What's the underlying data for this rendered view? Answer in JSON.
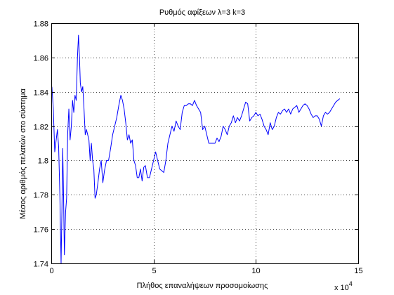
{
  "chart_data": {
    "type": "line",
    "title": "Ρυθμός αφίξεων λ=3 k=3",
    "xlabel": "Πλήθος επαναλήψεων προσομοίωσης",
    "ylabel": "Μέσος αριθμός πελατών στο σύστημα",
    "x_multiplier": "x 10",
    "x_multiplier_exponent": "4",
    "xlim": [
      0,
      15
    ],
    "ylim": [
      1.74,
      1.88
    ],
    "xticks": [
      0,
      5,
      10,
      15
    ],
    "xtick_labels": [
      "0",
      "5",
      "10",
      "15"
    ],
    "yticks": [
      1.74,
      1.76,
      1.78,
      1.8,
      1.82,
      1.84,
      1.86,
      1.88
    ],
    "ytick_labels": [
      "1.74",
      "1.76",
      "1.78",
      "1.8",
      "1.82",
      "1.84",
      "1.86",
      "1.88"
    ],
    "grid": true,
    "grid_style": "dotted",
    "series": [
      {
        "color": "#0000ff",
        "points": [
          [
            0.03,
            1.843
          ],
          [
            0.1,
            1.83
          ],
          [
            0.17,
            1.805
          ],
          [
            0.24,
            1.812
          ],
          [
            0.3,
            1.818
          ],
          [
            0.36,
            1.808
          ],
          [
            0.42,
            1.78
          ],
          [
            0.48,
            1.74
          ],
          [
            0.52,
            1.77
          ],
          [
            0.56,
            1.807
          ],
          [
            0.6,
            1.78
          ],
          [
            0.64,
            1.745
          ],
          [
            0.7,
            1.77
          ],
          [
            0.75,
            1.778
          ],
          [
            0.8,
            1.815
          ],
          [
            0.86,
            1.83
          ],
          [
            0.92,
            1.812
          ],
          [
            0.98,
            1.82
          ],
          [
            1.04,
            1.835
          ],
          [
            1.1,
            1.828
          ],
          [
            1.16,
            1.838
          ],
          [
            1.22,
            1.835
          ],
          [
            1.28,
            1.86
          ],
          [
            1.33,
            1.873
          ],
          [
            1.38,
            1.86
          ],
          [
            1.42,
            1.845
          ],
          [
            1.48,
            1.84
          ],
          [
            1.54,
            1.843
          ],
          [
            1.6,
            1.83
          ],
          [
            1.66,
            1.815
          ],
          [
            1.72,
            1.818
          ],
          [
            1.78,
            1.815
          ],
          [
            1.84,
            1.812
          ],
          [
            1.9,
            1.8
          ],
          [
            1.96,
            1.81
          ],
          [
            2.02,
            1.8
          ],
          [
            2.08,
            1.795
          ],
          [
            2.14,
            1.778
          ],
          [
            2.2,
            1.78
          ],
          [
            2.28,
            1.787
          ],
          [
            2.36,
            1.795
          ],
          [
            2.44,
            1.8
          ],
          [
            2.52,
            1.787
          ],
          [
            2.6,
            1.794
          ],
          [
            2.7,
            1.8
          ],
          [
            2.8,
            1.8
          ],
          [
            2.9,
            1.807
          ],
          [
            3.0,
            1.815
          ],
          [
            3.1,
            1.82
          ],
          [
            3.2,
            1.825
          ],
          [
            3.3,
            1.832
          ],
          [
            3.4,
            1.838
          ],
          [
            3.48,
            1.835
          ],
          [
            3.56,
            1.83
          ],
          [
            3.64,
            1.822
          ],
          [
            3.72,
            1.812
          ],
          [
            3.8,
            1.815
          ],
          [
            3.88,
            1.81
          ],
          [
            3.96,
            1.812
          ],
          [
            4.04,
            1.8
          ],
          [
            4.12,
            1.797
          ],
          [
            4.2,
            1.79
          ],
          [
            4.28,
            1.79
          ],
          [
            4.36,
            1.795
          ],
          [
            4.44,
            1.788
          ],
          [
            4.52,
            1.796
          ],
          [
            4.6,
            1.797
          ],
          [
            4.7,
            1.79
          ],
          [
            4.8,
            1.79
          ],
          [
            4.9,
            1.795
          ],
          [
            5.0,
            1.8
          ],
          [
            5.1,
            1.805
          ],
          [
            5.2,
            1.8
          ],
          [
            5.3,
            1.795
          ],
          [
            5.4,
            1.794
          ],
          [
            5.5,
            1.793
          ],
          [
            5.6,
            1.8
          ],
          [
            5.7,
            1.81
          ],
          [
            5.8,
            1.815
          ],
          [
            5.9,
            1.82
          ],
          [
            6.0,
            1.817
          ],
          [
            6.1,
            1.823
          ],
          [
            6.2,
            1.82
          ],
          [
            6.3,
            1.818
          ],
          [
            6.4,
            1.828
          ],
          [
            6.5,
            1.832
          ],
          [
            6.6,
            1.832
          ],
          [
            6.7,
            1.833
          ],
          [
            6.8,
            1.833
          ],
          [
            6.9,
            1.832
          ],
          [
            7.0,
            1.835
          ],
          [
            7.1,
            1.832
          ],
          [
            7.2,
            1.83
          ],
          [
            7.3,
            1.828
          ],
          [
            7.4,
            1.818
          ],
          [
            7.5,
            1.82
          ],
          [
            7.6,
            1.815
          ],
          [
            7.7,
            1.81
          ],
          [
            7.8,
            1.81
          ],
          [
            7.9,
            1.81
          ],
          [
            8.0,
            1.81
          ],
          [
            8.1,
            1.813
          ],
          [
            8.2,
            1.811
          ],
          [
            8.3,
            1.814
          ],
          [
            8.4,
            1.82
          ],
          [
            8.5,
            1.818
          ],
          [
            8.6,
            1.815
          ],
          [
            8.7,
            1.82
          ],
          [
            8.8,
            1.822
          ],
          [
            8.9,
            1.826
          ],
          [
            9.0,
            1.822
          ],
          [
            9.1,
            1.825
          ],
          [
            9.2,
            1.823
          ],
          [
            9.3,
            1.826
          ],
          [
            9.4,
            1.83
          ],
          [
            9.5,
            1.834
          ],
          [
            9.6,
            1.833
          ],
          [
            9.7,
            1.823
          ],
          [
            9.8,
            1.825
          ],
          [
            9.9,
            1.826
          ],
          [
            10.0,
            1.828
          ],
          [
            10.1,
            1.826
          ],
          [
            10.2,
            1.827
          ],
          [
            10.3,
            1.824
          ],
          [
            10.4,
            1.82
          ],
          [
            10.5,
            1.818
          ],
          [
            10.6,
            1.815
          ],
          [
            10.7,
            1.822
          ],
          [
            10.8,
            1.818
          ],
          [
            10.9,
            1.82
          ],
          [
            11.0,
            1.825
          ],
          [
            11.1,
            1.828
          ],
          [
            11.2,
            1.827
          ],
          [
            11.3,
            1.829
          ],
          [
            11.4,
            1.83
          ],
          [
            11.5,
            1.828
          ],
          [
            11.6,
            1.83
          ],
          [
            11.7,
            1.827
          ],
          [
            11.8,
            1.83
          ],
          [
            11.9,
            1.831
          ],
          [
            12.0,
            1.832
          ],
          [
            12.1,
            1.828
          ],
          [
            12.2,
            1.83
          ],
          [
            12.3,
            1.832
          ],
          [
            12.4,
            1.833
          ],
          [
            12.5,
            1.832
          ],
          [
            12.6,
            1.83
          ],
          [
            12.7,
            1.827
          ],
          [
            12.8,
            1.825
          ],
          [
            12.9,
            1.826
          ],
          [
            13.0,
            1.826
          ],
          [
            13.1,
            1.824
          ],
          [
            13.2,
            1.82
          ],
          [
            13.3,
            1.826
          ],
          [
            13.4,
            1.828
          ],
          [
            13.5,
            1.827
          ],
          [
            13.6,
            1.828
          ],
          [
            13.7,
            1.83
          ],
          [
            13.8,
            1.832
          ],
          [
            13.9,
            1.834
          ],
          [
            14.0,
            1.835
          ],
          [
            14.1,
            1.836
          ]
        ]
      }
    ]
  }
}
